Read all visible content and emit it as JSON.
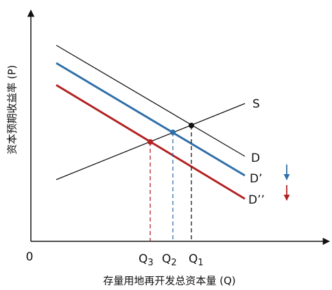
{
  "axes": {
    "y_label": "资本预期收益率 (P)",
    "x_label": "存量用地再开发总资本量 (Q)",
    "origin": "0"
  },
  "curves": [
    {
      "label": "S"
    },
    {
      "label": "D"
    },
    {
      "label": "D’"
    },
    {
      "label": "D’’"
    }
  ],
  "quantities": [
    {
      "label": "Q",
      "sub": "3"
    },
    {
      "label": "Q",
      "sub": "2"
    },
    {
      "label": "Q",
      "sub": "1"
    }
  ]
}
